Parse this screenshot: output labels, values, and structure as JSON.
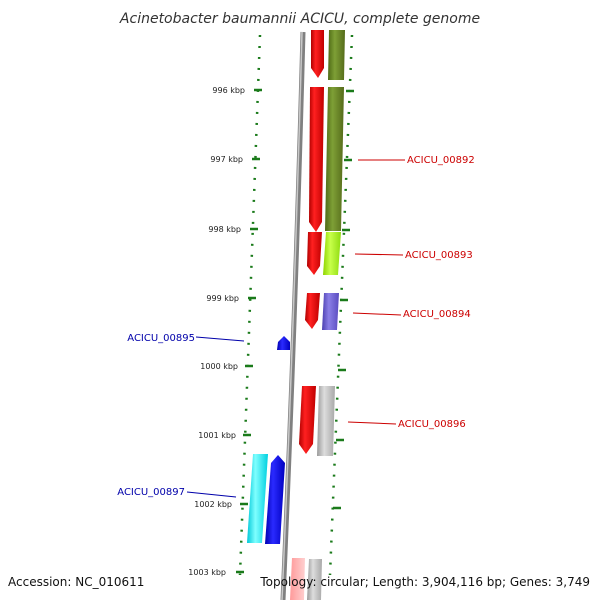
{
  "title": "Acinetobacter baumannii ACICU, complete genome",
  "footer": {
    "accession": "Accession: NC_010611",
    "topology": "Topology: circular; Length: 3,904,116 bp; Genes: 3,749"
  },
  "ticks": [
    {
      "label": "996 kbp"
    },
    {
      "label": "997 kbp"
    },
    {
      "label": "998 kbp"
    },
    {
      "label": "999 kbp"
    },
    {
      "label": "1000 kbp"
    },
    {
      "label": "1001 kbp"
    },
    {
      "label": "1002 kbp"
    },
    {
      "label": "1003 kbp"
    }
  ],
  "genes": [
    {
      "label": "ACICU_00892",
      "color": "#cc0000"
    },
    {
      "label": "ACICU_00893",
      "color": "#cc0000"
    },
    {
      "label": "ACICU_00894",
      "color": "#cc0000"
    },
    {
      "label": "ACICU_00895",
      "color": "#0000aa"
    },
    {
      "label": "ACICU_00896",
      "color": "#cc0000"
    },
    {
      "label": "ACICU_00897",
      "color": "#0000aa"
    }
  ],
  "colors": {
    "tick": "#1a7a1a",
    "backbone": "#808080",
    "forward_strand": "#ff0000",
    "cds_olive": "#6b8e23",
    "cds_lime": "#adff2f",
    "cds_purple": "#6a5acd",
    "cds_gray": "#c0c0c0",
    "reverse_strand": "#0000ff",
    "cds_cyan": "#00ffff"
  }
}
